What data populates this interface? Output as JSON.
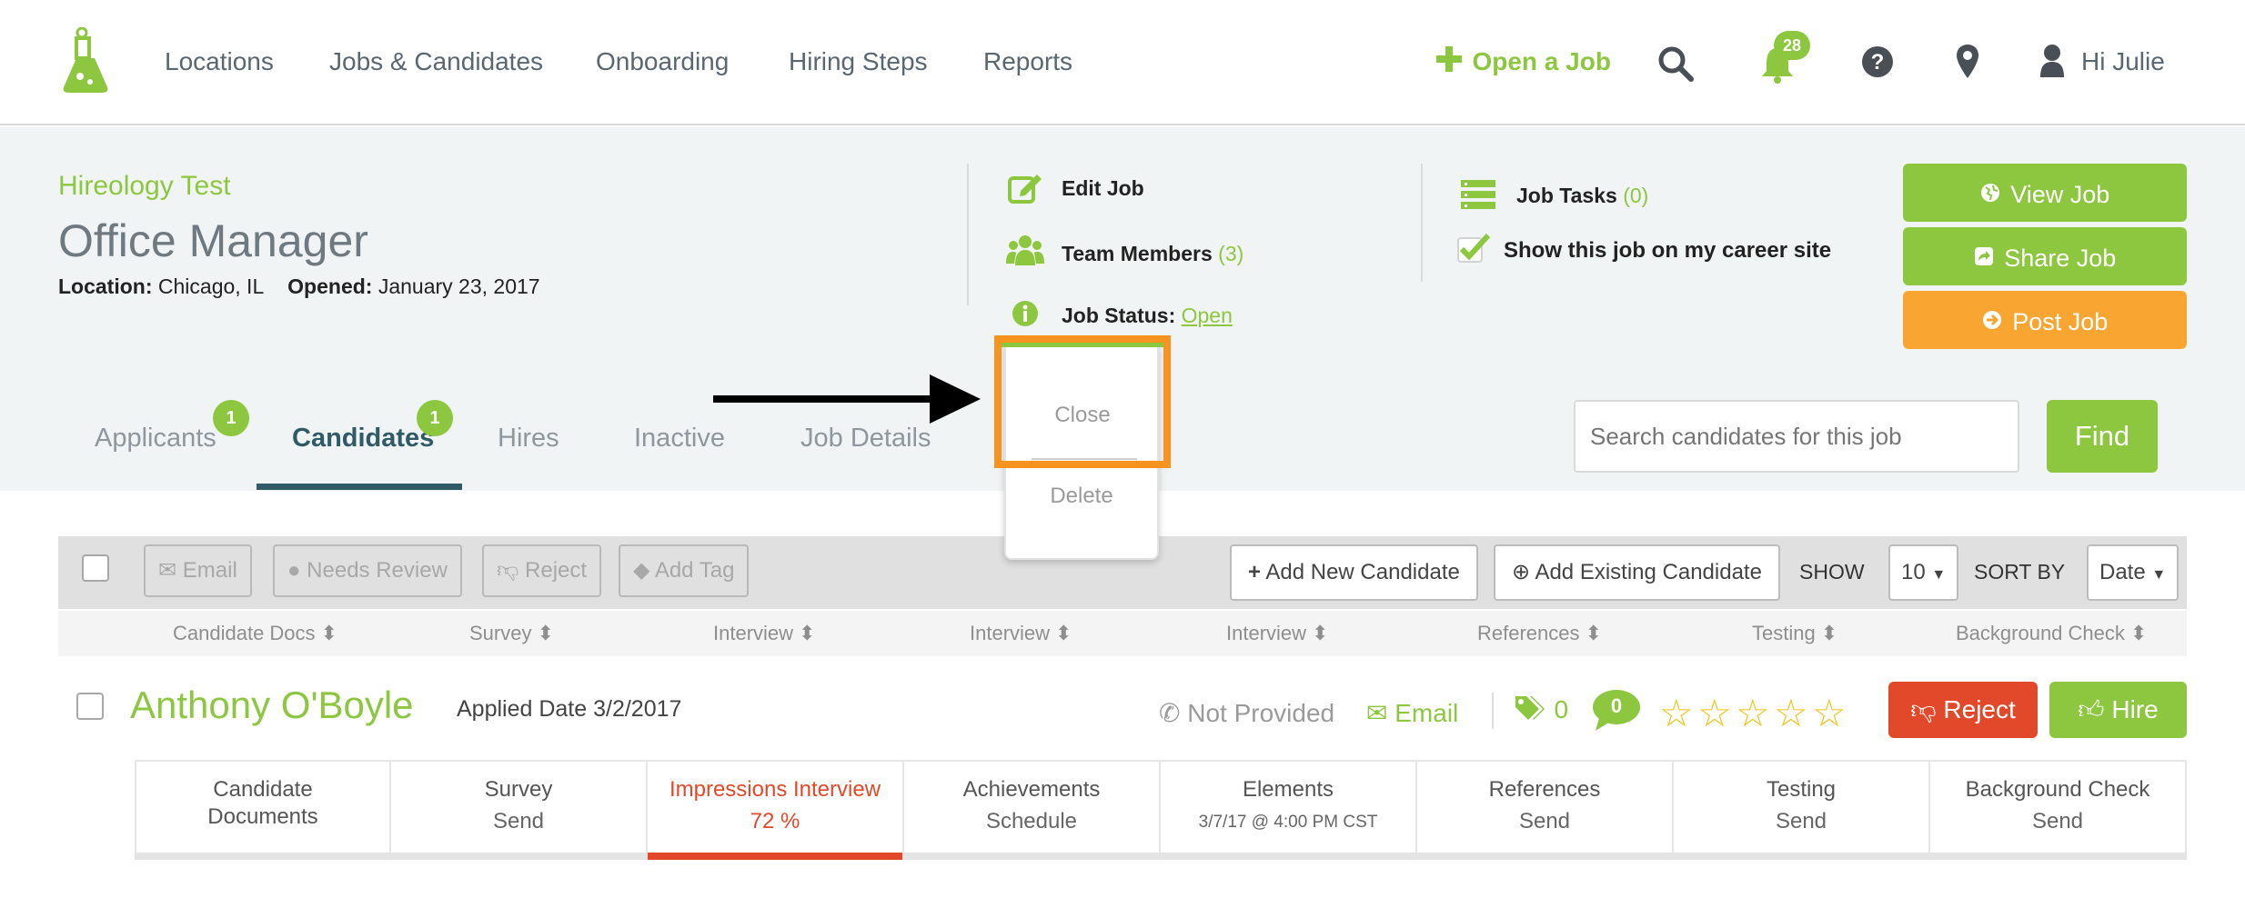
{
  "nav": {
    "links": [
      "Locations",
      "Jobs & Candidates",
      "Onboarding",
      "Hiring Steps",
      "Reports"
    ],
    "open_job": "Open a Job",
    "notifications_count": "28",
    "user_greeting": "Hi Julie"
  },
  "job": {
    "company": "Hireology Test",
    "title": "Office Manager",
    "location_label": "Location:",
    "location": "Chicago, IL",
    "opened_label": "Opened:",
    "opened": "January 23, 2017"
  },
  "actions": {
    "edit_job": "Edit Job",
    "team_members": "Team Members",
    "team_members_count": "(3)",
    "job_status_label": "Job Status:",
    "job_status": "Open",
    "job_tasks": "Job Tasks",
    "job_tasks_count": "(0)",
    "show_on_career_site": "Show this job on my career site"
  },
  "buttons": {
    "view_job": "View Job",
    "share_job": "Share Job",
    "post_job": "Post Job"
  },
  "status_dropdown": {
    "close": "Close",
    "delete": "Delete"
  },
  "tabs": [
    {
      "label": "Applicants",
      "badge": "1"
    },
    {
      "label": "Candidates",
      "badge": "1"
    },
    {
      "label": "Hires"
    },
    {
      "label": "Inactive"
    },
    {
      "label": "Job Details"
    }
  ],
  "search": {
    "placeholder": "Search candidates for this job",
    "find": "Find"
  },
  "toolbar": {
    "email": "Email",
    "needs_review": "Needs Review",
    "reject": "Reject",
    "add_tag": "Add Tag",
    "add_new_candidate": "Add New Candidate",
    "add_existing_candidate": "Add Existing Candidate",
    "show_label": "SHOW",
    "show_value": "10",
    "sort_label": "SORT BY",
    "sort_value": "Date"
  },
  "columns": [
    "Candidate Docs",
    "Survey",
    "Interview",
    "Interview",
    "Interview",
    "References",
    "Testing",
    "Background Check"
  ],
  "candidate": {
    "name": "Anthony O'Boyle",
    "applied": "Applied Date 3/2/2017",
    "phone": "Not Provided",
    "email": "Email",
    "tags": "0",
    "comments": "0",
    "rating": 0,
    "reject": "Reject",
    "hire": "Hire"
  },
  "stages": [
    {
      "title": "Candidate Documents",
      "sub": ""
    },
    {
      "title": "Survey",
      "sub": "Send"
    },
    {
      "title": "Impressions Interview",
      "sub": "72 %"
    },
    {
      "title": "Achievements",
      "sub": "Schedule"
    },
    {
      "title": "Elements",
      "sub": "3/7/17 @ 4:00 PM CST"
    },
    {
      "title": "References",
      "sub": "Send"
    },
    {
      "title": "Testing",
      "sub": "Send"
    },
    {
      "title": "Background Check",
      "sub": "Send"
    }
  ],
  "colors": {
    "brand_green": "#8dc63f",
    "orange": "#f9a532",
    "red": "#e2492a",
    "teal": "#2f5a66",
    "highlight_orange": "#f7931e"
  }
}
